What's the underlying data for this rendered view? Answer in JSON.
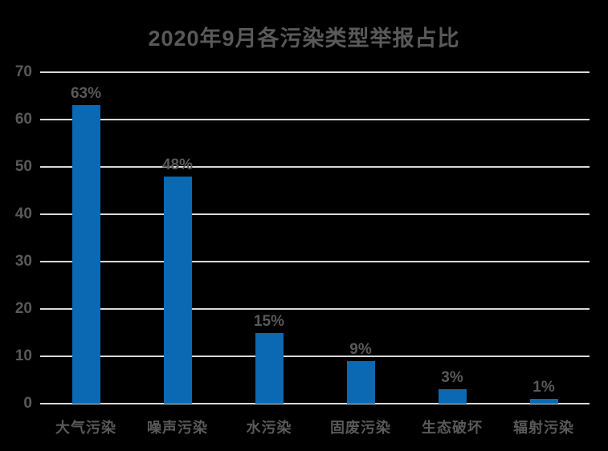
{
  "chart_data": {
    "type": "bar",
    "title": "2020年9月各污染类型举报占比",
    "categories": [
      "大气污染",
      "噪声污染",
      "水污染",
      "固废污染",
      "生态破坏",
      "辐射污染"
    ],
    "values": [
      63,
      48,
      15,
      9,
      3,
      1
    ],
    "value_labels": [
      "63%",
      "48%",
      "15%",
      "9%",
      "3%",
      "1%"
    ],
    "xlabel": "",
    "ylabel": "",
    "ylim": [
      0,
      70
    ],
    "yticks": [
      0,
      10,
      20,
      30,
      40,
      50,
      60,
      70
    ],
    "grid": "horizontal",
    "legend": "none",
    "colors": {
      "background": "#000000",
      "bar": "#0b69b3",
      "text": "#595959",
      "gridline": "#d9d9d9"
    }
  }
}
